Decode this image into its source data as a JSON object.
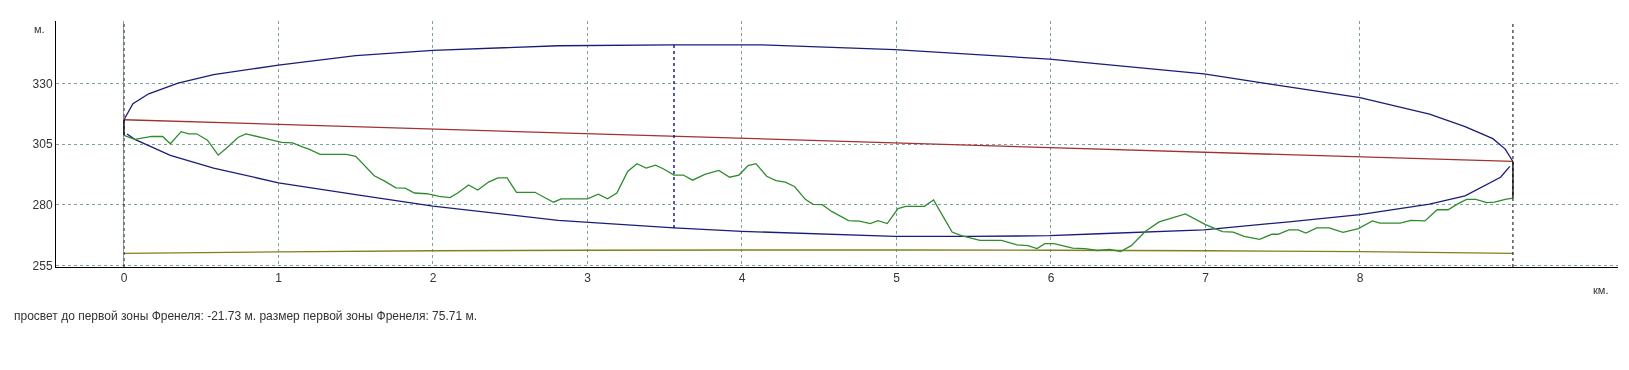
{
  "chart_data": {
    "type": "line",
    "xlabel": "км.",
    "ylabel": "м.",
    "xlim": [
      -0.44,
      9.67
    ],
    "ylim": [
      254.3,
      355.7
    ],
    "xticks": [
      0,
      1,
      2,
      3,
      4,
      5,
      6,
      7,
      8
    ],
    "yticks": [
      255,
      280,
      305,
      330
    ],
    "grid": true,
    "series": [
      {
        "color": "#1c1c78",
        "x": [
          0,
          0.058,
          0.16,
          0.35,
          0.58,
          1,
          1.5,
          2,
          2.81,
          3.56,
          4.12,
          4.99,
          5.99,
          6.31,
          6.99,
          7.43,
          8.0,
          8.45,
          8.68,
          8.86,
          8.94,
          8.99
        ],
        "values": [
          315,
          321.6,
          325.7,
          330.1,
          333.6,
          337.5,
          341.4,
          343.6,
          345.5,
          345.9,
          345.9,
          343.9,
          340.0,
          338.0,
          333.9,
          329.6,
          324.1,
          317.3,
          312.2,
          307.2,
          302.9,
          297.8
        ]
      },
      {
        "color": "#1c1c78",
        "x": [
          0.02,
          0.07,
          0.3,
          0.58,
          1,
          1.5,
          2,
          2.81,
          3.56,
          4.0,
          4.99,
          5.46,
          5.99,
          6.31,
          6.99,
          7.54,
          8.0,
          8.45,
          8.68,
          8.91,
          8.97
        ],
        "values": [
          309.1,
          306.9,
          300.3,
          295.1,
          289.0,
          284.1,
          279.4,
          273.5,
          270.4,
          269.0,
          266.9,
          266.9,
          267.2,
          268.0,
          269.6,
          272.9,
          275.9,
          280.2,
          283.6,
          291.3,
          295.8
        ]
      },
      {
        "color": "#a03232",
        "x": [
          0,
          8.99
        ],
        "values": [
          315,
          297.8
        ]
      },
      {
        "color": "#80801e",
        "x": [
          0,
          1,
          2,
          3,
          4,
          5,
          6,
          7,
          8,
          8.99
        ],
        "values": [
          259.9,
          260.5,
          261.0,
          261.2,
          261.3,
          261.3,
          261.2,
          261.0,
          260.6,
          259.9
        ]
      },
      {
        "color": "#000080",
        "line_style": "dotted",
        "x": [
          3.56,
          3.56
        ],
        "values": [
          270.4,
          345.9
        ]
      },
      {
        "color": "#000000",
        "x": [
          0,
          0,
          null,
          8.99,
          8.99
        ],
        "values": [
          315,
          308.6,
          null,
          297.8,
          282.7
        ]
      },
      {
        "color": "#2e8b2e",
        "x": [
          0,
          0.07,
          0.18,
          0.25,
          0.3,
          0.37,
          0.42,
          0.47,
          0.54,
          0.61,
          0.67,
          0.74,
          0.79,
          0.9,
          1.02,
          1.09,
          1.16,
          1.2,
          1.27,
          1.44,
          1.5,
          1.62,
          1.69,
          1.76,
          1.82,
          1.88,
          1.96,
          2.04,
          2.11,
          2.16,
          2.23,
          2.29,
          2.36,
          2.42,
          2.48,
          2.54,
          2.66,
          2.78,
          2.83,
          3.0,
          3.07,
          3.13,
          3.19,
          3.26,
          3.32,
          3.38,
          3.44,
          3.49,
          3.56,
          3.62,
          3.68,
          3.76,
          3.85,
          3.92,
          3.98,
          4.04,
          4.09,
          4.16,
          4.22,
          4.28,
          4.34,
          4.41,
          4.46,
          4.52,
          4.58,
          4.69,
          4.76,
          4.83,
          4.88,
          4.94,
          5.01,
          5.06,
          5.18,
          5.24,
          5.32,
          5.36,
          5.42,
          5.54,
          5.68,
          5.78,
          5.85,
          5.91,
          5.96,
          6.02,
          6.14,
          6.22,
          6.3,
          6.38,
          6.45,
          6.52,
          6.61,
          6.7,
          6.78,
          6.87,
          7.0,
          7.11,
          7.18,
          7.25,
          7.35,
          7.43,
          7.47,
          7.54,
          7.6,
          7.65,
          7.72,
          7.8,
          7.89,
          7.99,
          8.08,
          8.13,
          8.26,
          8.33,
          8.42,
          8.5,
          8.57,
          8.63,
          8.69,
          8.75,
          8.82,
          8.87,
          8.94,
          8.99
        ],
        "values": [
          308.6,
          306.9,
          308.1,
          308.1,
          305.1,
          310.1,
          309.2,
          309.2,
          306.6,
          300.4,
          303.7,
          307.8,
          309.2,
          307.5,
          305.7,
          305.5,
          303.7,
          302.8,
          300.7,
          300.7,
          299.9,
          291.9,
          289.6,
          286.9,
          286.8,
          284.8,
          284.5,
          283.4,
          282.9,
          284.8,
          288.1,
          286.0,
          289.3,
          291.0,
          291.0,
          285.1,
          285.1,
          281.0,
          282.4,
          282.4,
          284.3,
          282.4,
          284.8,
          293.7,
          296.9,
          295.1,
          296.3,
          294.8,
          292.2,
          292.2,
          290.1,
          292.5,
          294.1,
          291.3,
          292.2,
          296.1,
          296.9,
          291.7,
          289.9,
          289.3,
          287.5,
          282.2,
          280.1,
          280.0,
          277.2,
          273.4,
          273.2,
          272.2,
          273.4,
          272.2,
          278.4,
          279.3,
          279.3,
          281.9,
          273.1,
          268.7,
          267.2,
          265.3,
          265.3,
          263.4,
          263.1,
          261.9,
          263.9,
          263.9,
          262.1,
          261.9,
          261.1,
          261.6,
          260.7,
          263.1,
          268.9,
          272.9,
          274.4,
          276.2,
          271.8,
          268.9,
          268.7,
          266.9,
          265.7,
          267.8,
          267.8,
          269.6,
          269.6,
          268.3,
          270.4,
          270.4,
          268.6,
          270.1,
          273.3,
          272.4,
          272.4,
          273.5,
          273.3,
          277.9,
          277.9,
          280.2,
          282.2,
          282.2,
          280.8,
          281.0,
          282.2,
          282.7
        ]
      }
    ],
    "ref_lines": [
      {
        "axis": "x",
        "value": 0,
        "color": "#000000",
        "line_style": "dotted"
      },
      {
        "axis": "x",
        "value": 8.99,
        "color": "#000000",
        "line_style": "dotted"
      }
    ],
    "annotations": [
      "просвет до первой зоны Френеля: -21.73 м. размер первой зоны Френеля: 75.71 м."
    ]
  }
}
